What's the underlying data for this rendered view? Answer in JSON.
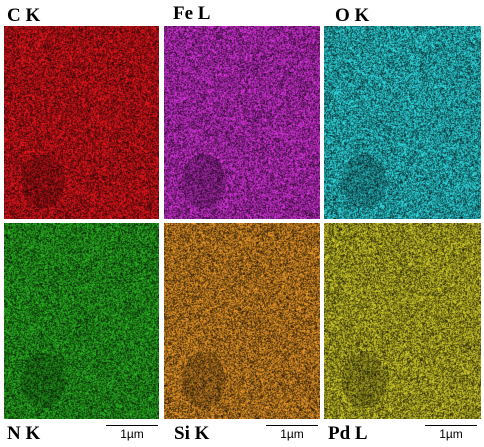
{
  "maps": [
    {
      "element": "C K",
      "color": "#d0141a"
    },
    {
      "element": "Fe L",
      "color": "#c22ec6"
    },
    {
      "element": "O K",
      "color": "#2ac6cc"
    },
    {
      "element": "N K",
      "color": "#26a21e"
    },
    {
      "element": "Si K",
      "color": "#d48a24"
    },
    {
      "element": "Pd L",
      "color": "#bdb826"
    }
  ],
  "scale_bar": "1µm"
}
